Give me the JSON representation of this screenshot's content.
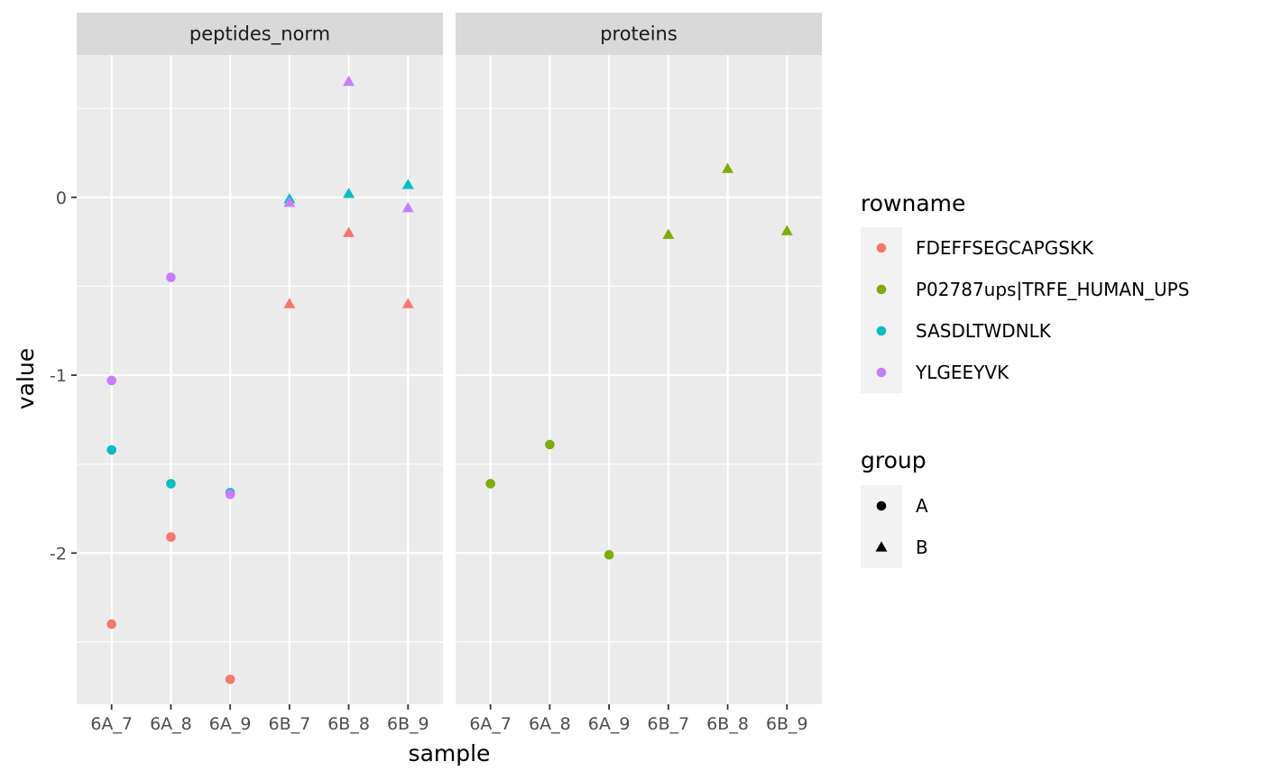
{
  "chart_data": {
    "type": "scatter",
    "xlabel": "sample",
    "ylabel": "value",
    "ylim": [
      -2.85,
      0.8
    ],
    "y_ticks": [
      0,
      -1,
      -2
    ],
    "y_tick_labels": [
      "0",
      "-1",
      "-2"
    ],
    "categories": [
      "6A_7",
      "6A_8",
      "6A_9",
      "6B_7",
      "6B_8",
      "6B_9"
    ],
    "panels": [
      {
        "title": "peptides_norm",
        "points": [
          {
            "x": "6A_7",
            "y": -2.4,
            "rowname": "FDEFFSEGCAPGSKK",
            "group": "A"
          },
          {
            "x": "6A_8",
            "y": -1.91,
            "rowname": "FDEFFSEGCAPGSKK",
            "group": "A"
          },
          {
            "x": "6A_9",
            "y": -2.71,
            "rowname": "FDEFFSEGCAPGSKK",
            "group": "A"
          },
          {
            "x": "6B_7",
            "y": -0.6,
            "rowname": "FDEFFSEGCAPGSKK",
            "group": "B"
          },
          {
            "x": "6B_8",
            "y": -0.2,
            "rowname": "FDEFFSEGCAPGSKK",
            "group": "B"
          },
          {
            "x": "6B_9",
            "y": -0.6,
            "rowname": "FDEFFSEGCAPGSKK",
            "group": "B"
          },
          {
            "x": "6A_7",
            "y": -1.42,
            "rowname": "SASDLTWDNLK",
            "group": "A"
          },
          {
            "x": "6A_8",
            "y": -1.61,
            "rowname": "SASDLTWDNLK",
            "group": "A"
          },
          {
            "x": "6A_9",
            "y": -1.66,
            "rowname": "SASDLTWDNLK",
            "group": "A"
          },
          {
            "x": "6B_7",
            "y": -0.01,
            "rowname": "SASDLTWDNLK",
            "group": "B"
          },
          {
            "x": "6B_8",
            "y": 0.02,
            "rowname": "SASDLTWDNLK",
            "group": "B"
          },
          {
            "x": "6B_9",
            "y": 0.07,
            "rowname": "SASDLTWDNLK",
            "group": "B"
          },
          {
            "x": "6A_7",
            "y": -1.03,
            "rowname": "YLGEEYVK",
            "group": "A"
          },
          {
            "x": "6A_8",
            "y": -0.45,
            "rowname": "YLGEEYVK",
            "group": "A"
          },
          {
            "x": "6A_9",
            "y": -1.67,
            "rowname": "YLGEEYVK",
            "group": "A"
          },
          {
            "x": "6B_7",
            "y": -0.03,
            "rowname": "YLGEEYVK",
            "group": "B"
          },
          {
            "x": "6B_8",
            "y": 0.65,
            "rowname": "YLGEEYVK",
            "group": "B"
          },
          {
            "x": "6B_9",
            "y": -0.06,
            "rowname": "YLGEEYVK",
            "group": "B"
          }
        ]
      },
      {
        "title": "proteins",
        "points": [
          {
            "x": "6A_7",
            "y": -1.61,
            "rowname": "P02787ups|TRFE_HUMAN_UPS",
            "group": "A"
          },
          {
            "x": "6A_8",
            "y": -1.39,
            "rowname": "P02787ups|TRFE_HUMAN_UPS",
            "group": "A"
          },
          {
            "x": "6A_9",
            "y": -2.01,
            "rowname": "P02787ups|TRFE_HUMAN_UPS",
            "group": "A"
          },
          {
            "x": "6B_7",
            "y": -0.21,
            "rowname": "P02787ups|TRFE_HUMAN_UPS",
            "group": "B"
          },
          {
            "x": "6B_8",
            "y": 0.16,
            "rowname": "P02787ups|TRFE_HUMAN_UPS",
            "group": "B"
          },
          {
            "x": "6B_9",
            "y": -0.19,
            "rowname": "P02787ups|TRFE_HUMAN_UPS",
            "group": "B"
          }
        ]
      }
    ],
    "legends": [
      {
        "title": "rowname",
        "entries": [
          {
            "label": "FDEFFSEGCAPGSKK",
            "color": "#F8766D",
            "shape": "circle"
          },
          {
            "label": "P02787ups|TRFE_HUMAN_UPS",
            "color": "#7CAE00",
            "shape": "circle"
          },
          {
            "label": "SASDLTWDNLK",
            "color": "#00BFC4",
            "shape": "circle"
          },
          {
            "label": "YLGEEYVK",
            "color": "#C77CFF",
            "shape": "circle"
          }
        ]
      },
      {
        "title": "group",
        "entries": [
          {
            "label": "A",
            "color": "#000000",
            "shape": "circle"
          },
          {
            "label": "B",
            "color": "#000000",
            "shape": "triangle"
          }
        ]
      }
    ],
    "colors": {
      "FDEFFSEGCAPGSKK": "#F8766D",
      "P02787ups|TRFE_HUMAN_UPS": "#7CAE00",
      "SASDLTWDNLK": "#00BFC4",
      "YLGEEYVK": "#C77CFF"
    },
    "panel_background": "#EBEBEB",
    "strip_background": "#D9D9D9",
    "legend_key_background": "#F2F2F2",
    "grid": true,
    "legend_position": "right"
  }
}
